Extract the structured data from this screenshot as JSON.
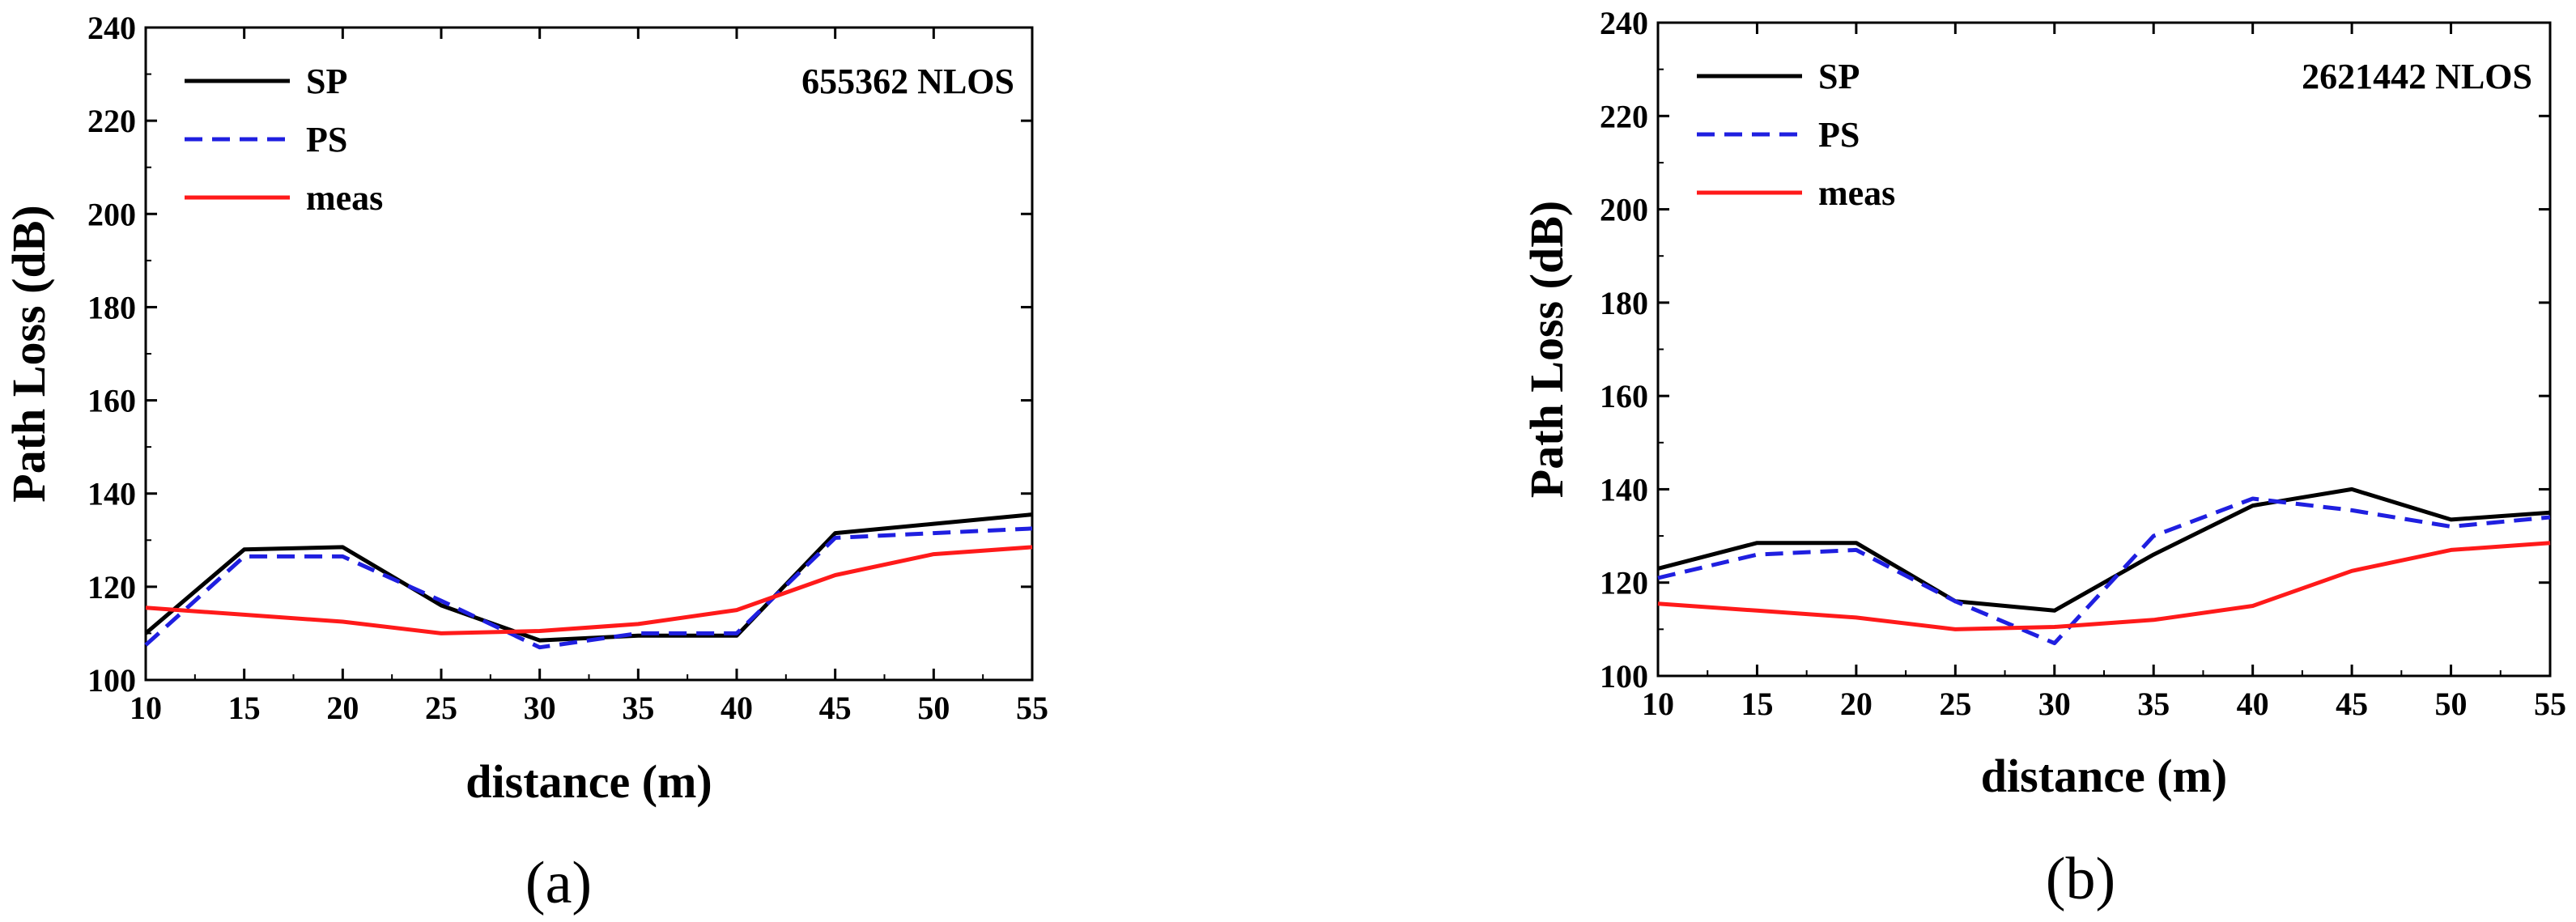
{
  "chart_data": [
    {
      "type": "line",
      "panel_label": "(a)",
      "annotation": "655362  NLOS",
      "xlabel": "distance (m)",
      "ylabel": "Path Loss (dB)",
      "xlim": [
        10,
        55
      ],
      "ylim": [
        100,
        240
      ],
      "xticks": [
        10,
        15,
        20,
        25,
        30,
        35,
        40,
        45,
        50,
        55
      ],
      "yticks": [
        100,
        120,
        140,
        160,
        180,
        200,
        220,
        240
      ],
      "legend_position": "top-left",
      "series": [
        {
          "name": "SP",
          "color": "#000000",
          "dash": "solid",
          "x": [
            10,
            15,
            20,
            25,
            30,
            35,
            40,
            45,
            50,
            55
          ],
          "y": [
            110,
            128,
            128.5,
            116,
            108.5,
            109.5,
            109.5,
            131.5,
            133.5,
            135.5
          ]
        },
        {
          "name": "PS",
          "color": "#1f1fe0",
          "dash": "dashed",
          "x": [
            10,
            15,
            20,
            25,
            30,
            35,
            40,
            45,
            50,
            55
          ],
          "y": [
            107.5,
            126.5,
            126.5,
            117,
            107,
            110,
            110,
            130.5,
            131.5,
            132.5
          ]
        },
        {
          "name": "meas",
          "color": "#ff1a1a",
          "dash": "solid",
          "x": [
            10,
            15,
            20,
            25,
            30,
            35,
            40,
            45,
            50,
            55
          ],
          "y": [
            115.5,
            114,
            112.5,
            110,
            110.5,
            112,
            115,
            122.5,
            127,
            128.5
          ]
        }
      ]
    },
    {
      "type": "line",
      "panel_label": "(b)",
      "annotation": "2621442  NLOS",
      "xlabel": "distance (m)",
      "ylabel": "Path Loss (dB)",
      "xlim": [
        10,
        55
      ],
      "ylim": [
        100,
        240
      ],
      "xticks": [
        10,
        15,
        20,
        25,
        30,
        35,
        40,
        45,
        50,
        55
      ],
      "yticks": [
        100,
        120,
        140,
        160,
        180,
        200,
        220,
        240
      ],
      "legend_position": "top-left",
      "series": [
        {
          "name": "SP",
          "color": "#000000",
          "dash": "solid",
          "x": [
            10,
            15,
            20,
            25,
            30,
            35,
            40,
            45,
            50,
            55
          ],
          "y": [
            123,
            128.5,
            128.5,
            116,
            114,
            126,
            136.5,
            140,
            133.5,
            135
          ]
        },
        {
          "name": "PS",
          "color": "#1f1fe0",
          "dash": "dashed",
          "x": [
            10,
            15,
            20,
            25,
            30,
            35,
            40,
            45,
            50,
            55
          ],
          "y": [
            121,
            126,
            127,
            116,
            107,
            130,
            138,
            135.5,
            132,
            134
          ]
        },
        {
          "name": "meas",
          "color": "#ff1a1a",
          "dash": "solid",
          "x": [
            10,
            15,
            20,
            25,
            30,
            35,
            40,
            45,
            50,
            55
          ],
          "y": [
            115.5,
            114,
            112.5,
            110,
            110.5,
            112,
            115,
            122.5,
            127,
            128.5
          ]
        }
      ]
    }
  ]
}
